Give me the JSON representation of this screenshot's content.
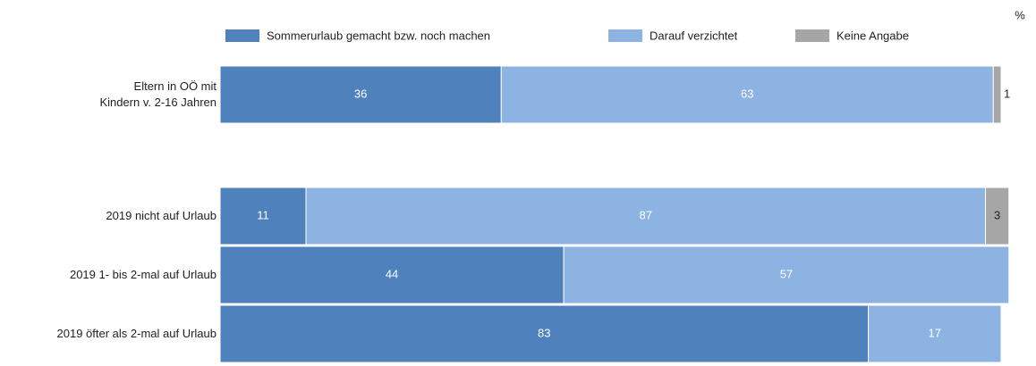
{
  "chart_data": {
    "type": "stacked-bar-horizontal",
    "unit": "%",
    "categories": [
      "Eltern in OÖ mit\nKindern v. 2-16 Jahren",
      "2019 nicht auf Urlaub",
      "2019 1- bis 2-mal auf Urlaub",
      "2019 öfter als 2-mal auf Urlaub"
    ],
    "series": [
      {
        "name": "Sommerurlaub gemacht bzw. noch machen",
        "color": "#4f81bd",
        "values": [
          36,
          11,
          44,
          83
        ]
      },
      {
        "name": "Darauf verzichtet",
        "color": "#8db3e2",
        "values": [
          63,
          87,
          57,
          17
        ]
      },
      {
        "name": "Keine Angabe",
        "color": "#a6a6a6",
        "values": [
          1,
          3,
          null,
          null
        ]
      }
    ],
    "xlim": [
      0,
      100
    ],
    "legend": "top"
  }
}
